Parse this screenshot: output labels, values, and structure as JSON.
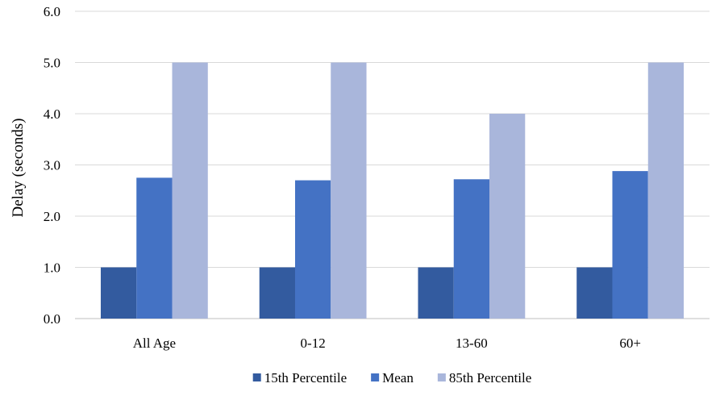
{
  "chart_data": {
    "type": "bar",
    "title": "",
    "xlabel": "",
    "ylabel": "Delay (seconds)",
    "categories": [
      "All Age",
      "0-12",
      "13-60",
      "60+"
    ],
    "series": [
      {
        "name": "15th Percentile",
        "values": [
          1.0,
          1.0,
          1.0,
          1.0
        ],
        "color": "#335b9f"
      },
      {
        "name": "Mean",
        "values": [
          2.75,
          2.7,
          2.72,
          2.88
        ],
        "color": "#4472c4"
      },
      {
        "name": "85th Percentile",
        "values": [
          5.0,
          5.0,
          4.0,
          5.0
        ],
        "color": "#a9b6db"
      }
    ],
    "ylim": [
      0,
      6
    ],
    "yticks": [
      "0.0",
      "1.0",
      "2.0",
      "3.0",
      "4.0",
      "5.0",
      "6.0"
    ],
    "grid": true,
    "legend_position": "bottom"
  }
}
